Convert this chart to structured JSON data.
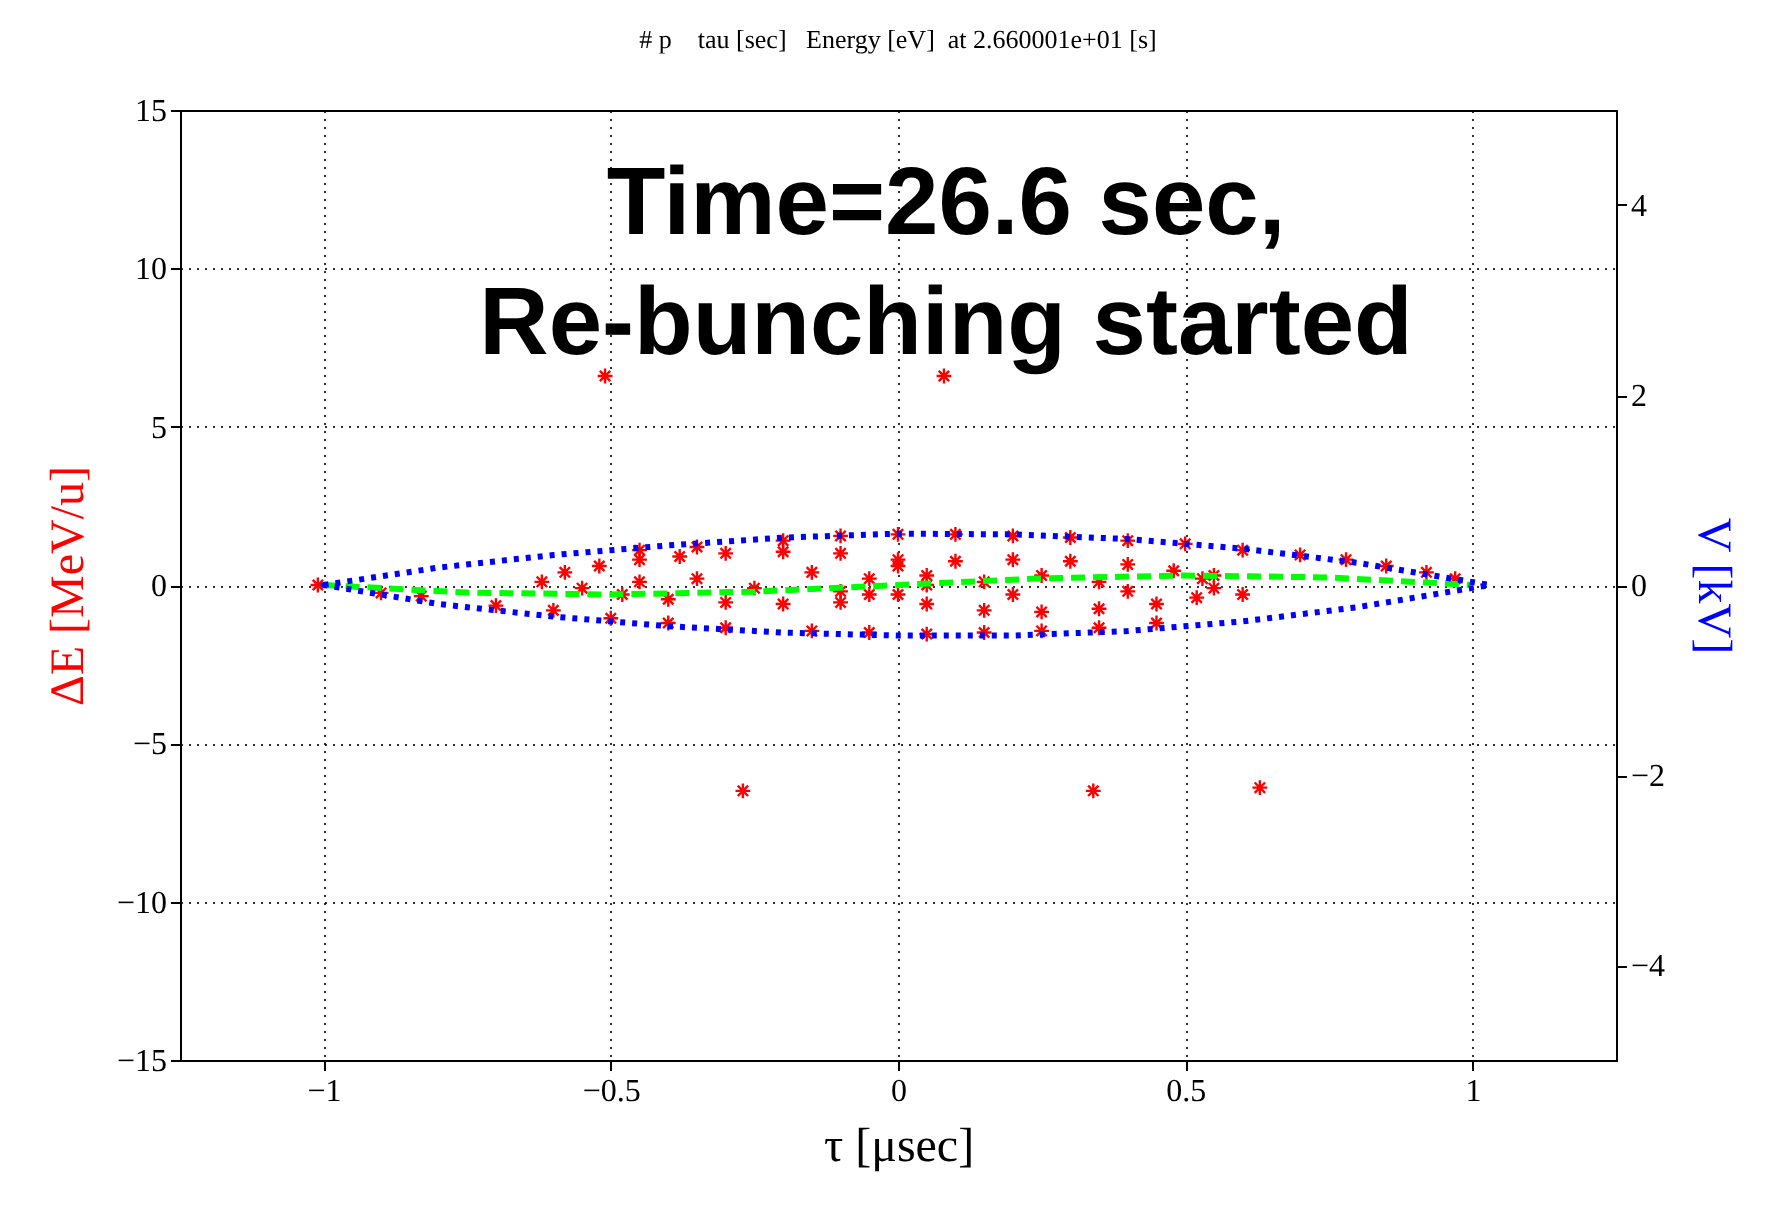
{
  "chart_data": {
    "type": "scatter",
    "title": "# p    tau [sec]   Energy [eV]  at 2.660001e+01 [s]",
    "xlabel": "τ [μsec]",
    "ylabel": "ΔE [MeV/u]",
    "y2label": "V [kV]",
    "annotations": [
      "Time=26.6 sec,\nRe-bunching started"
    ],
    "xlim": [
      -1.25,
      1.25
    ],
    "xticks": [
      -1,
      -0.5,
      0,
      0.5,
      1
    ],
    "ylim": [
      -15,
      15
    ],
    "yticks": [
      -15,
      -10,
      -5,
      0,
      5,
      10,
      15
    ],
    "y2lim": [
      -5,
      5
    ],
    "y2ticks": [
      -4,
      -2,
      0,
      2,
      4
    ],
    "grid": true,
    "series": [
      {
        "color": "#ff0000",
        "marker": "cross",
        "x": [
          -1.01,
          -0.51,
          0.08,
          -0.27,
          0.34,
          0.63,
          -0.62,
          -0.58,
          -0.52,
          -0.45,
          -0.38,
          -0.3,
          -0.2,
          -0.1,
          0.0,
          -0.55,
          -0.48,
          -0.4,
          -0.3,
          -0.2,
          -0.1,
          0.0,
          0.05,
          0.0,
          0.1,
          0.2,
          0.3,
          0.4,
          0.48,
          0.53,
          0.55,
          0.52,
          0.45,
          0.35,
          0.25,
          0.15,
          0.05,
          -0.05,
          -0.35,
          -0.25,
          -0.15,
          -0.05,
          0.05,
          0.15,
          0.25,
          0.35,
          -0.45,
          0.4,
          0.2,
          -0.1,
          0.6,
          0.55,
          -0.2,
          -0.1,
          0,
          0.1,
          0.2,
          0.3,
          0.4,
          0.5,
          0.6,
          0.7,
          0.78,
          0.85,
          0.92,
          0.97,
          -0.35,
          -0.45,
          -0.9,
          -0.83,
          -0.7,
          -0.6,
          -0.5,
          -0.4,
          -0.3,
          -0.15,
          -0.05,
          0.05,
          0.15,
          0.25,
          0.35,
          0.45
        ],
        "values": [
          0,
          6.6,
          6.6,
          -6.5,
          -6.5,
          -6.4,
          0.1,
          0.4,
          0.6,
          0.8,
          0.9,
          1.0,
          1.05,
          1.0,
          0.8,
          -0.1,
          -0.3,
          -0.45,
          -0.55,
          -0.6,
          -0.55,
          -0.3,
          0,
          0.6,
          0.75,
          0.8,
          0.75,
          0.65,
          0.45,
          0.2,
          -0.1,
          -0.4,
          -0.6,
          -0.75,
          -0.85,
          -0.8,
          -0.6,
          -0.3,
          0.2,
          -0.1,
          0.4,
          0.2,
          0.3,
          0.1,
          0.3,
          0.1,
          0.1,
          -0.2,
          -0.3,
          -0.2,
          -0.3,
          0.3,
          1.4,
          1.55,
          1.6,
          1.6,
          1.55,
          1.5,
          1.4,
          1.3,
          1.1,
          0.95,
          0.8,
          0.6,
          0.4,
          0.2,
          1.2,
          1.1,
          -0.25,
          -0.35,
          -0.65,
          -0.8,
          -1.05,
          -1.2,
          -1.35,
          -1.45,
          -1.5,
          -1.55,
          -1.5,
          -1.45,
          -1.35,
          -1.2
        ]
      },
      {
        "type": "line",
        "color": "#00ff00",
        "line_style": "dashed",
        "axis": "y2",
        "x": [
          -1,
          -0.75,
          -0.5,
          -0.25,
          0,
          0.25,
          0.5,
          0.75,
          1
        ],
        "values": [
          0,
          -0.08,
          -0.1,
          -0.07,
          0,
          0.07,
          0.1,
          0.08,
          0
        ]
      }
    ]
  }
}
